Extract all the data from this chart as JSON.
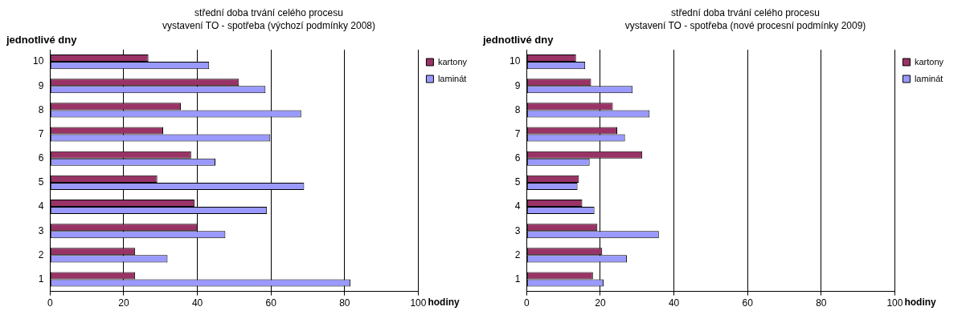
{
  "chart_data": [
    {
      "type": "bar",
      "orientation": "horizontal",
      "title": "střední doba trvání celého procesu",
      "subtitle": "vystavení TO - spotřeba (výchozí podmínky 2008)",
      "ylabel": "jednotlivé dny",
      "xlabel": "hodiny",
      "categories": [
        "10",
        "9",
        "8",
        "7",
        "6",
        "5",
        "4",
        "3",
        "2",
        "1"
      ],
      "series": [
        {
          "name": "kartony",
          "color": "#993366",
          "values": [
            26.7,
            51.3,
            35.5,
            30.7,
            38.3,
            29.1,
            39.2,
            40.1,
            23.1,
            23.1
          ]
        },
        {
          "name": "laminát",
          "color": "#9999ff",
          "values": [
            43.2,
            58.5,
            68.2,
            59.8,
            44.9,
            69.0,
            58.9,
            47.6,
            31.9,
            81.6
          ]
        }
      ],
      "xlim": [
        0,
        100
      ],
      "xticks": [
        0,
        20,
        40,
        60,
        80,
        100
      ],
      "grid": "x",
      "legend": "top right"
    },
    {
      "type": "bar",
      "orientation": "horizontal",
      "title": "střední doba trvání celého procesu",
      "subtitle": "vystavení TO - spotřeba (nové procesní podmínky 2009)",
      "ylabel": "jednotlivé dny",
      "xlabel": "hodiny",
      "categories": [
        "10",
        "9",
        "8",
        "7",
        "6",
        "5",
        "4",
        "3",
        "2",
        "1"
      ],
      "series": [
        {
          "name": "kartony",
          "color": "#993366",
          "values": [
            13.4,
            17.5,
            23.4,
            24.6,
            31.4,
            14.2,
            15.1,
            19.2,
            20.5,
            18.0
          ]
        },
        {
          "name": "laminát",
          "color": "#9999ff",
          "values": [
            15.9,
            28.8,
            33.4,
            26.7,
            17.1,
            13.8,
            18.4,
            35.9,
            27.2,
            20.9
          ]
        }
      ],
      "xlim": [
        0,
        100
      ],
      "xticks": [
        0,
        20,
        40,
        60,
        80,
        100
      ],
      "grid": "x",
      "legend": "top right"
    }
  ]
}
